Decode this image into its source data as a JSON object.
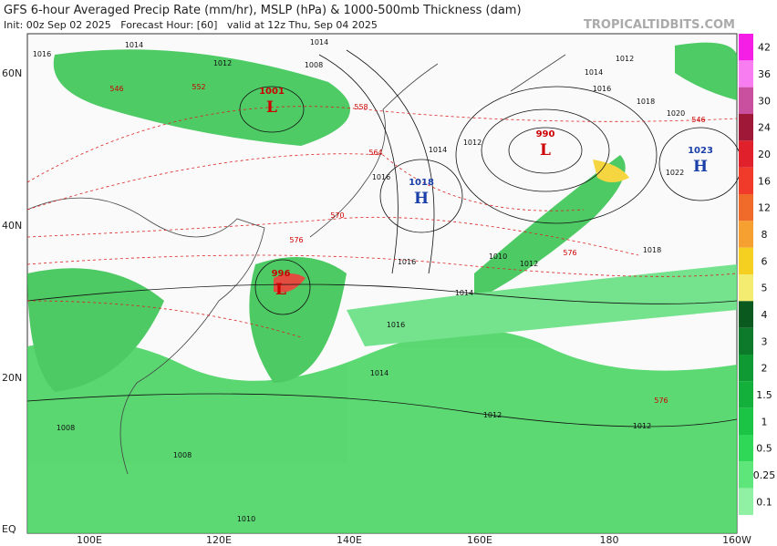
{
  "header": {
    "title": "GFS 6-hour Averaged Precip Rate (mm/hr), MSLP (hPa) & 1000-500mb Thickness (dam)",
    "subtitle": "Init: 00z Sep 02 2025   Forecast Hour: [60]   valid at 12z Thu, Sep 04 2025",
    "credit": "TROPICALTIDBITS.COM"
  },
  "map": {
    "lat_labels": [
      "60N",
      "40N",
      "20N",
      "EQ"
    ],
    "lon_labels": [
      "100E",
      "120E",
      "140E",
      "160E",
      "180",
      "160W"
    ],
    "pressure_centers": [
      {
        "kind": "L",
        "value": "1001"
      },
      {
        "kind": "L",
        "value": "996"
      },
      {
        "kind": "L",
        "value": "990"
      },
      {
        "kind": "H",
        "value": "1018"
      },
      {
        "kind": "H",
        "value": "1023"
      }
    ],
    "isobar_labels": [
      "1014",
      "1014",
      "1012",
      "1008",
      "1016",
      "1012",
      "1014",
      "1016",
      "1018",
      "1020",
      "1022",
      "1016",
      "1014",
      "1012",
      "1016",
      "1014",
      "1012",
      "1010",
      "1018",
      "1016",
      "1014",
      "1012",
      "1012",
      "1008",
      "1008",
      "1010"
    ],
    "thickness_labels": [
      "546",
      "552",
      "558",
      "564",
      "570",
      "576",
      "576",
      "576",
      "546"
    ]
  },
  "colorbar": {
    "labels": [
      "42",
      "36",
      "30",
      "24",
      "20",
      "16",
      "12",
      "8",
      "6",
      "5",
      "4",
      "3",
      "2",
      "1.5",
      "1",
      "0.5",
      "0.25",
      "0.1"
    ]
  }
}
